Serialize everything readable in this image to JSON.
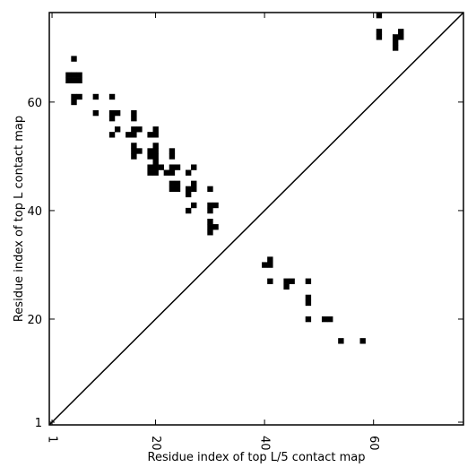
{
  "chart_data": {
    "type": "heatmap",
    "title": "",
    "xlabel": "Residue index of top L/5 contact map",
    "ylabel": "Residue index of top L contact map",
    "xlim": [
      0.5,
      76.5
    ],
    "ylim": [
      0.5,
      76.5
    ],
    "x_ticks": [
      1,
      20,
      40,
      60
    ],
    "y_ticks": [
      1,
      20,
      40,
      60
    ],
    "diagonal": true,
    "grid": false,
    "colors": {
      "contact": "#000000",
      "background": "#ffffff",
      "frame": "#000000"
    },
    "upper_contacts_top_L": [
      [
        5,
        68
      ],
      [
        4,
        65
      ],
      [
        5,
        65
      ],
      [
        6,
        65
      ],
      [
        4,
        64
      ],
      [
        5,
        64
      ],
      [
        6,
        64
      ],
      [
        5,
        61
      ],
      [
        6,
        61
      ],
      [
        5,
        60
      ],
      [
        9,
        61
      ],
      [
        9,
        58
      ],
      [
        12,
        61
      ],
      [
        12,
        58
      ],
      [
        13,
        58
      ],
      [
        12,
        57
      ],
      [
        12,
        54
      ],
      [
        13,
        55
      ],
      [
        16,
        58
      ],
      [
        16,
        57
      ],
      [
        16,
        55
      ],
      [
        17,
        55
      ],
      [
        15,
        54
      ],
      [
        16,
        54
      ],
      [
        16,
        52
      ],
      [
        16,
        51
      ],
      [
        17,
        51
      ],
      [
        16,
        50
      ],
      [
        19,
        54
      ],
      [
        20,
        55
      ],
      [
        20,
        54
      ],
      [
        20,
        52
      ],
      [
        19,
        51
      ],
      [
        20,
        51
      ],
      [
        19,
        50
      ],
      [
        20,
        50
      ],
      [
        20,
        49
      ],
      [
        19,
        48
      ],
      [
        20,
        48
      ],
      [
        21,
        48
      ],
      [
        19,
        47
      ],
      [
        20,
        47
      ],
      [
        22,
        47
      ],
      [
        23,
        47
      ],
      [
        23,
        48
      ],
      [
        24,
        48
      ],
      [
        23,
        51
      ],
      [
        23,
        50
      ],
      [
        23,
        45
      ],
      [
        24,
        45
      ],
      [
        23,
        44
      ],
      [
        24,
        44
      ],
      [
        26,
        47
      ],
      [
        27,
        48
      ],
      [
        27,
        45
      ],
      [
        26,
        44
      ],
      [
        27,
        44
      ],
      [
        26,
        43
      ],
      [
        27,
        41
      ],
      [
        26,
        40
      ],
      [
        30,
        44
      ],
      [
        30,
        41
      ],
      [
        31,
        41
      ],
      [
        30,
        40
      ],
      [
        30,
        38
      ],
      [
        30,
        37
      ],
      [
        31,
        37
      ],
      [
        30,
        36
      ],
      [
        61,
        76
      ],
      [
        61,
        73
      ],
      [
        61,
        72
      ],
      [
        64,
        72
      ],
      [
        65,
        73
      ],
      [
        65,
        72
      ],
      [
        64,
        71
      ],
      [
        64,
        70
      ]
    ],
    "lower_contacts_top_L5": [
      [
        40,
        30
      ],
      [
        41,
        30
      ],
      [
        41,
        31
      ],
      [
        41,
        27
      ],
      [
        44,
        27
      ],
      [
        45,
        27
      ],
      [
        44,
        26
      ],
      [
        48,
        27
      ],
      [
        48,
        24
      ],
      [
        48,
        23
      ],
      [
        48,
        20
      ],
      [
        51,
        20
      ],
      [
        52,
        20
      ],
      [
        54,
        16
      ],
      [
        58,
        16
      ]
    ]
  }
}
